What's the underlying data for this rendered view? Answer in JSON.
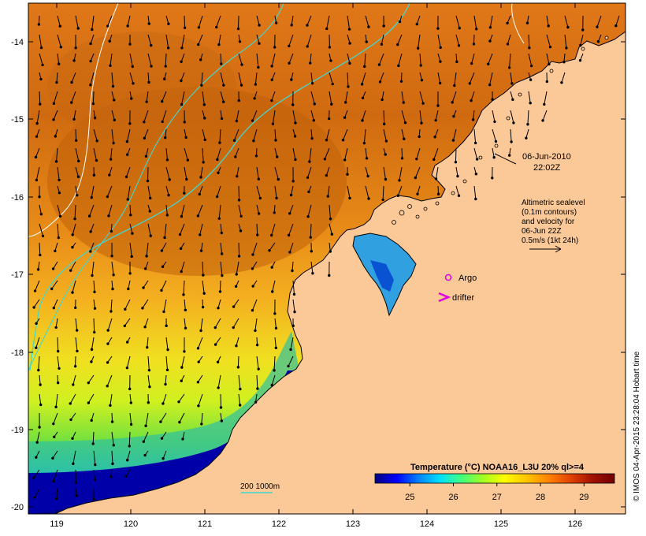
{
  "date_label": {
    "line1": "06-Jun-2010",
    "line2": "22:02Z"
  },
  "legend_text": {
    "line1": "Altimetric sealevel",
    "line2": "(0.1m contours)",
    "line3": "and velocity for",
    "line4": "06-Jun 22Z",
    "line5": "0.5m/s (1kt 24h)"
  },
  "markers": {
    "argo": "Argo",
    "drifter": "drifter"
  },
  "isobath_label": "200  1000m",
  "colorbar": {
    "title": "Temperature (°C) NOAA16_L3U 20% ql>=4",
    "ticks": [
      "25",
      "26",
      "27",
      "28",
      "29"
    ],
    "range": [
      24.2,
      29.7
    ],
    "colors": [
      "#00007f",
      "#0000ff",
      "#0080ff",
      "#00e0ff",
      "#40ff80",
      "#a0ff20",
      "#ffff00",
      "#ffc000",
      "#ff8000",
      "#e04000",
      "#a01000",
      "#700000"
    ]
  },
  "axes": {
    "lon_ticks": [
      "119",
      "120",
      "121",
      "122",
      "123",
      "124",
      "125",
      "126"
    ],
    "lat_ticks": [
      "-14",
      "-15",
      "-16",
      "-17",
      "-18",
      "-19",
      "-20"
    ]
  },
  "credit": "© IMOS 04-Apr-2015 23:28:04 Hobart time",
  "colors": {
    "land": "#fbc898",
    "coast": "#000000",
    "contour_200": "#40d8d0",
    "contour_sl": "#ffffff",
    "marker": "#e000e0"
  }
}
